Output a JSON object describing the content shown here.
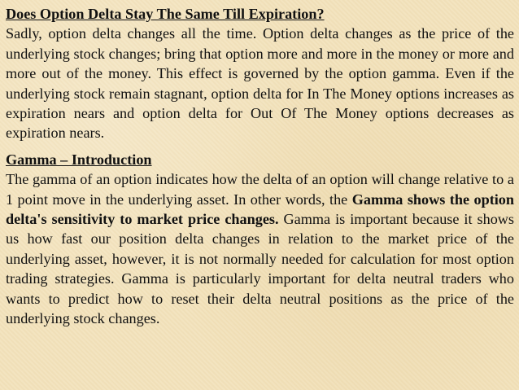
{
  "section1": {
    "heading": "Does Option Delta Stay The Same Till Expiration?",
    "body": "Sadly, option delta changes all the time. Option delta changes as the price of the underlying stock changes; bring that option more and more in the money or more and more out of the money. This effect is governed by the option gamma. Even if the underlying stock remain stagnant, option delta for In The Money options increases as expiration nears and option delta for Out Of The Money options decreases as expiration nears."
  },
  "section2": {
    "heading": "Gamma – Introduction",
    "body_intro": "The gamma of an option indicates how the delta of an option will change relative to a 1 point move in the underlying asset. In other words, the",
    "body_bold": "Gamma shows the option delta's sensitivity to market price changes.",
    "body_rest": "Gamma is important because it shows us how fast our position delta changes in relation to the market price of the underlying asset, however, it is not normally needed for calculation for most option trading strategies. Gamma is particularly important for delta neutral traders who wants to predict how to reset their delta neutral positions as the price of the underlying stock changes."
  }
}
